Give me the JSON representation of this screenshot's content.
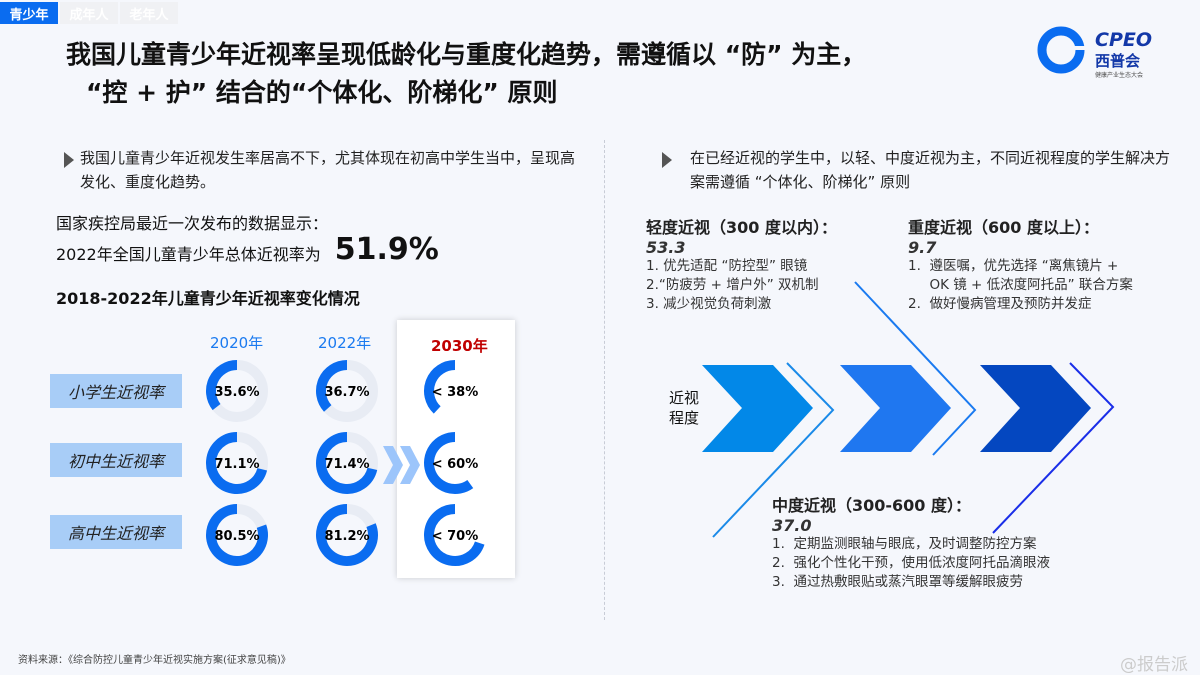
{
  "tabs": [
    {
      "label": "青少年",
      "active": true
    },
    {
      "label": "成年人"
    },
    {
      "label": "老年人"
    }
  ],
  "title": {
    "line1": "我国儿童青少年近视率呈现低龄化与重度化趋势，需遵循以 “防” 为主，",
    "line2": "“控 + 护” 结合的“个体化、阶梯化” 原则"
  },
  "logo": {
    "text": "CPEO",
    "cn": "西普会",
    "sub": "健康产业生态大会"
  },
  "left": {
    "intro": "我国儿童青少年近视发生率居高不下，尤其体现在初高中学生当中，呈现高发化、重度化趋势。",
    "data_line1": "国家疾控局最近一次发布的数据显示：",
    "data_line2": "2022年全国儿童青少年总体近视率为",
    "overall_rate": "51.9%",
    "chart_title": "2018-2022年儿童青少年近视率变化情况"
  },
  "chart_data": {
    "type": "donut-grid",
    "title": "2018-2022年儿童青少年近视率变化情况",
    "columns": [
      "2020年",
      "2022年",
      "2030年"
    ],
    "rows": [
      "小学生近视率",
      "初中生近视率",
      "高中生近视率"
    ],
    "values": [
      [
        35.6,
        36.7,
        38
      ],
      [
        71.1,
        71.4,
        60
      ],
      [
        80.5,
        81.2,
        70
      ]
    ],
    "labels": [
      [
        "35.6%",
        "36.7%",
        "< 38%"
      ],
      [
        "71.1%",
        "71.4%",
        "< 60%"
      ],
      [
        "80.5%",
        "81.2%",
        "< 70%"
      ]
    ],
    "colors": {
      "fill": "#0a6cf0",
      "track": "#e8ecf4",
      "target_year": "#c00000"
    }
  },
  "right": {
    "intro": "在已经近视的学生中，以轻、中度近视为主，不同近视程度的学生解决方案需遵循 “个体化、阶梯化” 原则",
    "axis_label": "近视\n程度",
    "mild": {
      "heading": "轻度近视（300 度以内）：",
      "value": "53.3",
      "items": [
        "1. 优先适配 “防控型” 眼镜",
        "2.“防疲劳 + 增户外” 双机制",
        "3. 减少视觉负荷刺激"
      ]
    },
    "severe": {
      "heading": "重度近视（600 度以上）：",
      "value": "9.7",
      "items": [
        "1.  遵医嘱，优先选择 “离焦镜片 +",
        "     OK 镜 + 低浓度阿托品” 联合方案",
        "2.  做好慢病管理及预防并发症"
      ]
    },
    "moderate": {
      "heading": "中度近视（300-600 度）：",
      "value": "37.0",
      "items": [
        "1.  定期监测眼轴与眼底，及时调整防控方案",
        "2.  强化个性化干预，使用低浓度阿托品滴眼液",
        "3.  通过热敷眼贴或蒸汽眼罩等缓解眼疲劳"
      ]
    },
    "chevron_colors": [
      "#0288e8",
      "#1f77f0",
      "#0447c0"
    ]
  },
  "source": "资料来源：《综合防控儿童青少年近视实施方案(征求意见稿)》",
  "watermark": "@报告派"
}
